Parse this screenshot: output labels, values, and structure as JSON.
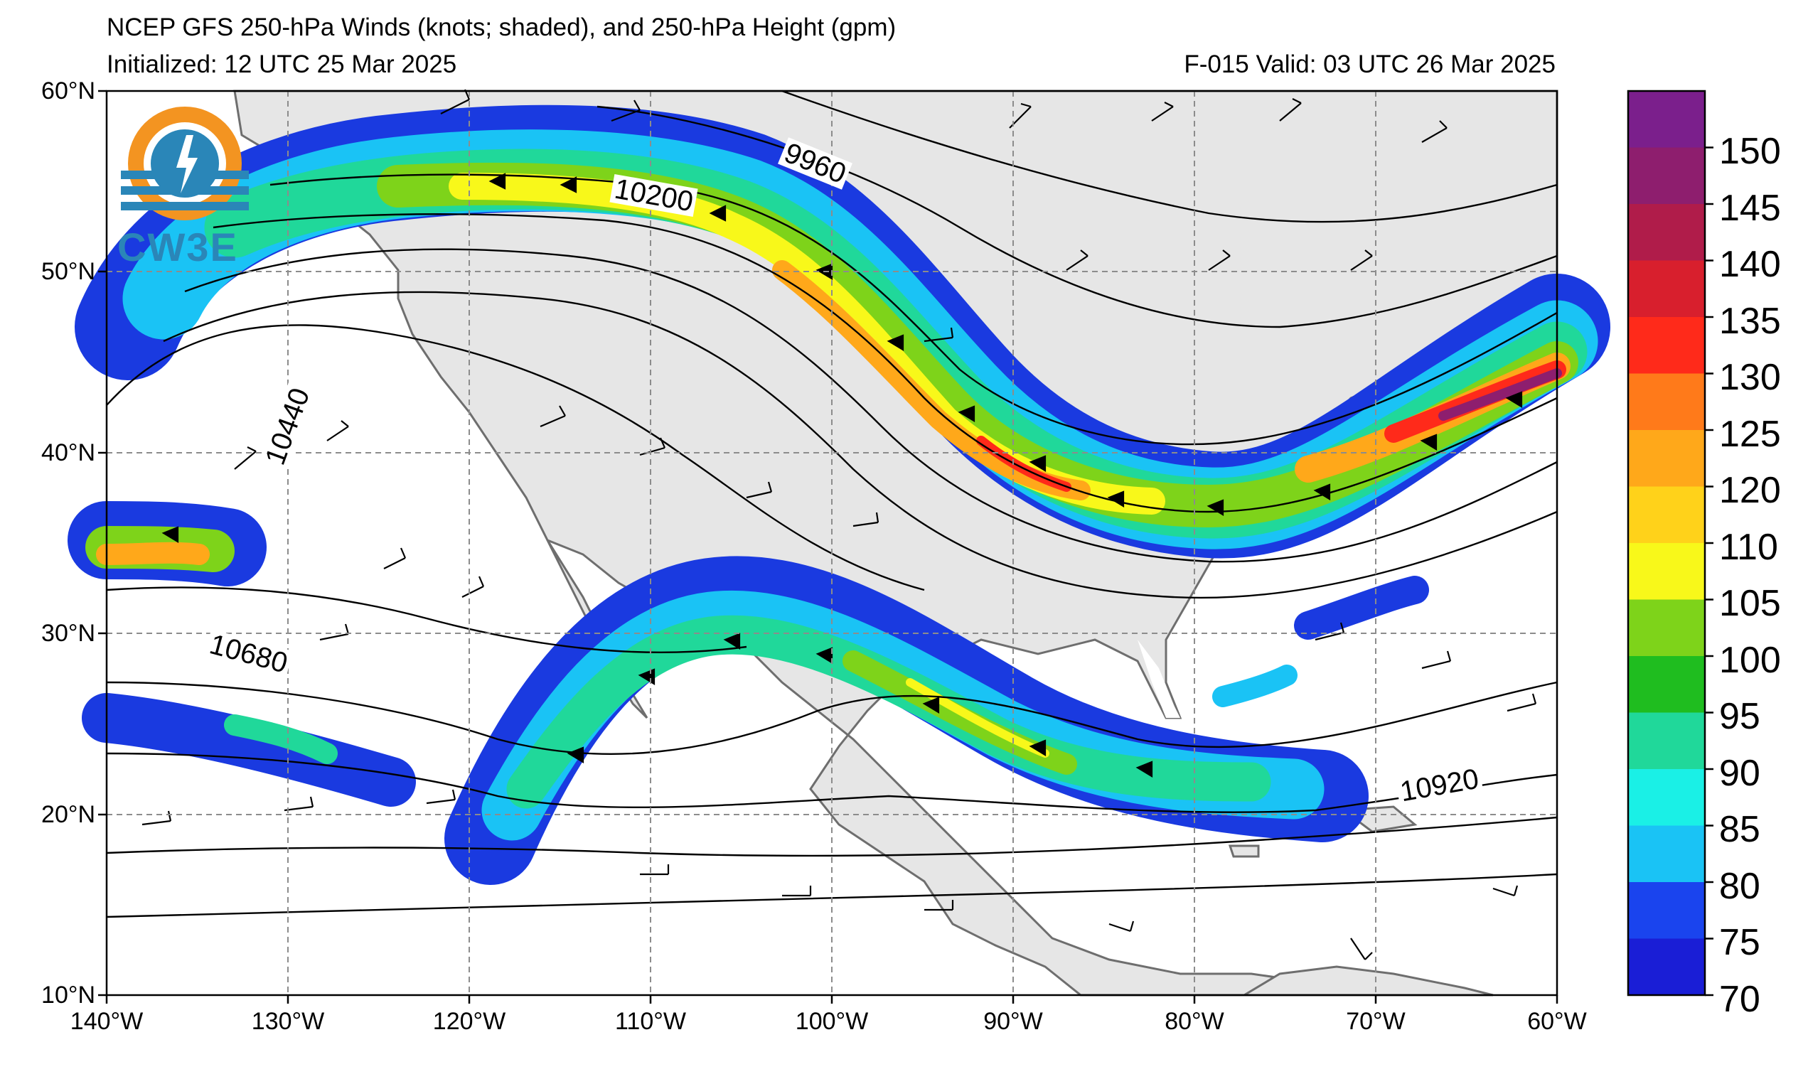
{
  "header": {
    "title": "NCEP GFS 250-hPa Winds (knots; shaded), and 250-hPa Height (gpm)",
    "initialized": "Initialized: 12 UTC 25 Mar 2025",
    "valid": "F-015  Valid: 03 UTC 26 Mar 2025"
  },
  "logo": {
    "text": "CW3E",
    "icon": "cw3e-logo-icon"
  },
  "map": {
    "lat_range": [
      10,
      60
    ],
    "lon_range": [
      -140,
      -60
    ],
    "lat_labels": [
      "60°N",
      "50°N",
      "40°N",
      "30°N",
      "20°N",
      "10°N"
    ],
    "lon_labels": [
      "140°W",
      "130°W",
      "120°W",
      "110°W",
      "100°W",
      "90°W",
      "80°W",
      "70°W",
      "60°W"
    ],
    "contour_labels": [
      "9960",
      "10200",
      "10440",
      "10680",
      "10920"
    ],
    "land_color": "#e6e6e6",
    "ocean_color": "#ffffff"
  },
  "colorbar": {
    "ticks": [
      "150",
      "145",
      "140",
      "135",
      "130",
      "125",
      "120",
      "110",
      "105",
      "100",
      "95",
      "90",
      "85",
      "80",
      "75",
      "70"
    ],
    "colors": [
      "#7b1f8c",
      "#8e1e6e",
      "#b01c4a",
      "#d81f2d",
      "#ff2a1a",
      "#ff7a1a",
      "#ffa81a",
      "#ffd21a",
      "#f8f81a",
      "#7ed31a",
      "#1fbd1f",
      "#20d89a",
      "#1af0e6",
      "#1ac3f5",
      "#1a44ee",
      "#1a1ed6"
    ]
  }
}
